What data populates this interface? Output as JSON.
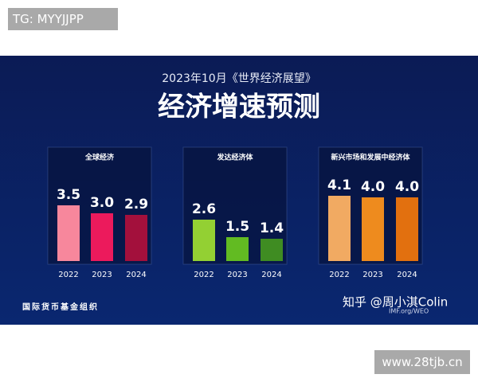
{
  "tag": "TG: MYYJJPP",
  "header": {
    "subtitle": "2023年10月《世界经济展望》",
    "title": "经济增速预测"
  },
  "footer": {
    "source": "国际货币基金组织",
    "site": "IMF.org/WEO"
  },
  "watermarks": {
    "zhihu": "知乎 @周小淇Colin",
    "site": "www.28tjb.cn"
  },
  "chart_data": [
    {
      "type": "bar",
      "title": "全球经济",
      "categories": [
        "2022",
        "2023",
        "2024"
      ],
      "values": [
        3.5,
        3.0,
        2.9
      ],
      "value_labels": [
        "3.5",
        "3.0",
        "2.9"
      ],
      "colors": [
        "#f7879c",
        "#ec1a5c",
        "#a3103c"
      ],
      "ylim": [
        0,
        5
      ]
    },
    {
      "type": "bar",
      "title": "发达经济体",
      "categories": [
        "2022",
        "2023",
        "2024"
      ],
      "values": [
        2.6,
        1.5,
        1.4
      ],
      "value_labels": [
        "2.6",
        "1.5",
        "1.4"
      ],
      "colors": [
        "#93d033",
        "#62bb22",
        "#3f8c22"
      ],
      "ylim": [
        0,
        5
      ]
    },
    {
      "type": "bar",
      "title": "新兴市场和发展中经济体",
      "categories": [
        "2022",
        "2023",
        "2024"
      ],
      "values": [
        4.1,
        4.0,
        4.0
      ],
      "value_labels": [
        "4.1",
        "4.0",
        "4.0"
      ],
      "colors": [
        "#f1aa62",
        "#ee8b1e",
        "#e2700f"
      ],
      "ylim": [
        0,
        5
      ]
    }
  ]
}
